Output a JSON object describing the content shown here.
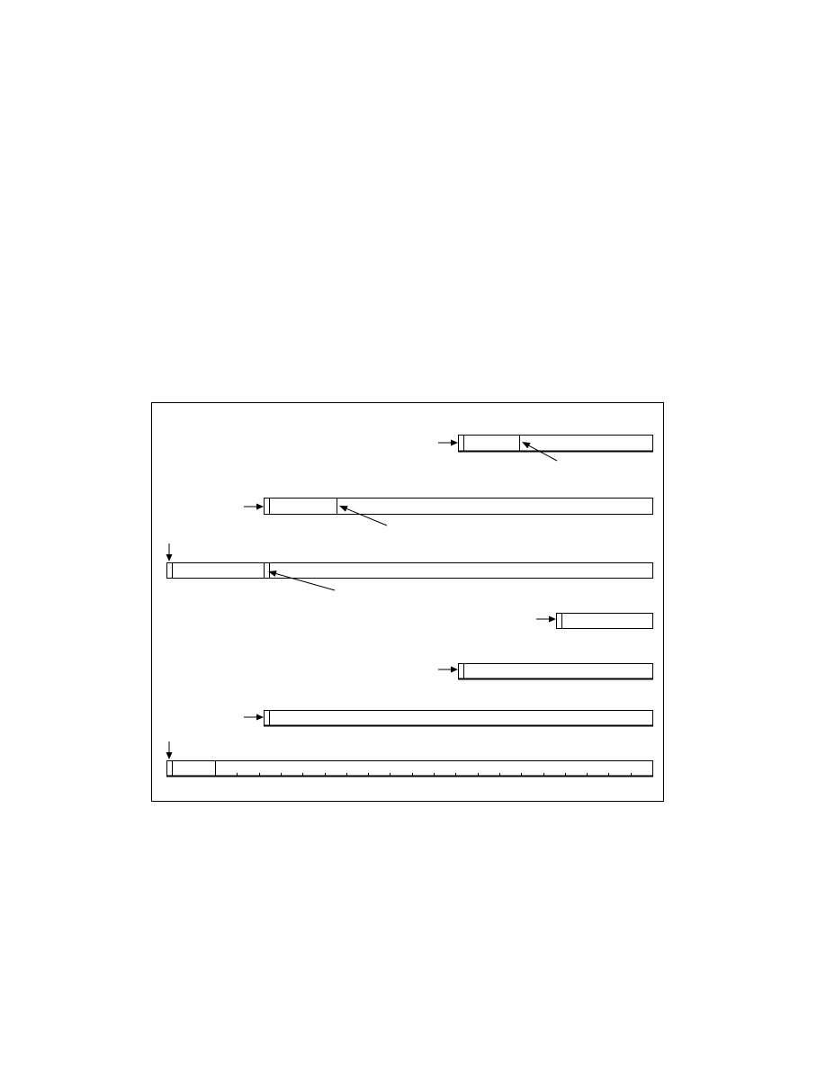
{
  "diagram": {
    "colors": {
      "ink": "#000000",
      "paper": "#ffffff"
    },
    "rows": [
      {
        "name": "bar-row-1",
        "start_marker": "right-arrow-icon",
        "has_sub_block": true,
        "has_pointer": true,
        "bold_bottom": true
      },
      {
        "name": "bar-row-2",
        "start_marker": "right-arrow-icon",
        "has_sub_block": true,
        "has_pointer": true,
        "bold_bottom": false
      },
      {
        "name": "bar-row-3",
        "start_marker": "down-arrow-icon",
        "has_sub_block": true,
        "has_pointer": true,
        "bold_bottom": false
      },
      {
        "name": "bar-row-4",
        "start_marker": "right-arrow-icon",
        "has_sub_block": false,
        "has_pointer": false,
        "bold_bottom": false
      },
      {
        "name": "bar-row-5",
        "start_marker": "right-arrow-icon",
        "has_sub_block": false,
        "has_pointer": false,
        "bold_bottom": true
      },
      {
        "name": "bar-row-6",
        "start_marker": "right-arrow-icon",
        "has_sub_block": false,
        "has_pointer": false,
        "bold_bottom": true
      },
      {
        "name": "bar-row-7",
        "start_marker": "down-arrow-icon",
        "has_sub_block": true,
        "has_pointer": false,
        "bold_bottom": true,
        "tick_count": 18
      }
    ]
  }
}
